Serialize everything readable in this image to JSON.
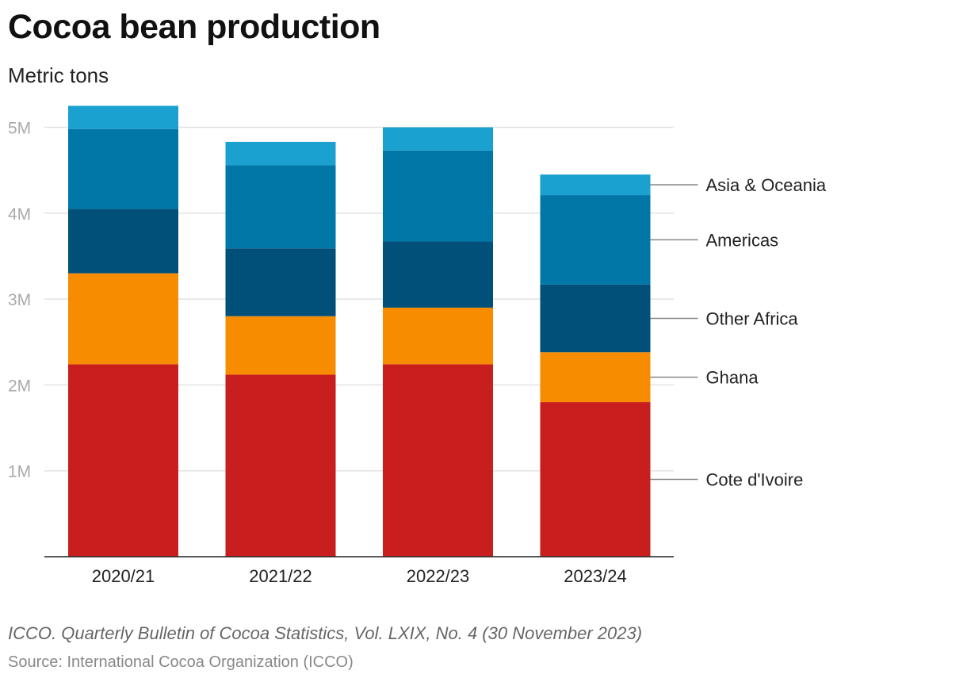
{
  "title": "Cocoa bean production",
  "subtitle": "Metric tons",
  "note": "ICCO. Quarterly Bulletin of Cocoa Statistics, Vol. LXIX, No. 4 (30 November 2023)",
  "source": "Source: International Cocoa Organization (ICCO)",
  "chart_data": {
    "type": "bar",
    "stacked": true,
    "categories": [
      "2020/21",
      "2021/22",
      "2022/23",
      "2023/24"
    ],
    "series": [
      {
        "name": "Cote d'Ivoire",
        "color": "#c81e1e",
        "values": [
          2.24,
          2.12,
          2.24,
          1.8
        ]
      },
      {
        "name": "Ghana",
        "color": "#f78c00",
        "values": [
          1.06,
          0.68,
          0.66,
          0.58
        ]
      },
      {
        "name": "Other Africa",
        "color": "#00507a",
        "values": [
          0.75,
          0.79,
          0.77,
          0.79
        ]
      },
      {
        "name": "Americas",
        "color": "#0077a6",
        "values": [
          0.93,
          0.97,
          1.06,
          1.04
        ]
      },
      {
        "name": "Asia & Oceania",
        "color": "#1ba1d0",
        "values": [
          0.27,
          0.27,
          0.27,
          0.24
        ]
      }
    ],
    "yticks": [
      "1M",
      "2M",
      "3M",
      "4M",
      "5M"
    ],
    "ytick_values": [
      1,
      2,
      3,
      4,
      5
    ],
    "ylim": [
      0,
      5.25
    ],
    "unit": "million metric tons",
    "grid": true,
    "legend_placement": "right, labels beside last bar"
  }
}
